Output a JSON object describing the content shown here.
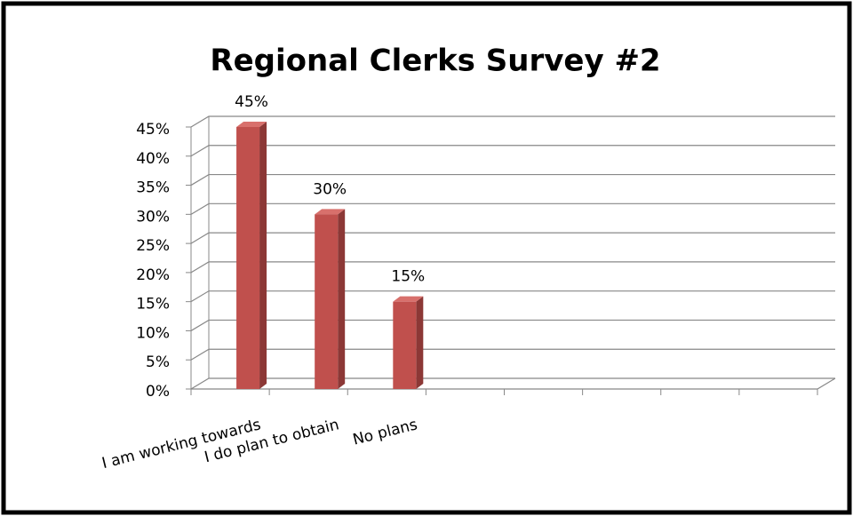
{
  "chart_data": {
    "type": "bar3d",
    "title": "Regional Clerks Survey #2",
    "categories": [
      "I am working towards",
      "I do plan to obtain",
      "No plans",
      null,
      null,
      null,
      null,
      null
    ],
    "values": [
      45,
      30,
      15,
      null,
      null,
      null,
      null,
      null
    ],
    "value_labels": [
      "45%",
      "30%",
      "15%",
      null,
      null,
      null,
      null,
      null
    ],
    "color": "#c0504d",
    "ylim": [
      0,
      45
    ],
    "yticks": [
      {
        "value": 0,
        "label": "0%"
      },
      {
        "value": 5,
        "label": "5%"
      },
      {
        "value": 10,
        "label": "10%"
      },
      {
        "value": 15,
        "label": "15%"
      },
      {
        "value": 20,
        "label": "20%"
      },
      {
        "value": 25,
        "label": "25%"
      },
      {
        "value": 30,
        "label": "30%"
      },
      {
        "value": 35,
        "label": "35%"
      },
      {
        "value": 40,
        "label": "40%"
      },
      {
        "value": 45,
        "label": "45%"
      }
    ],
    "grid": true
  }
}
